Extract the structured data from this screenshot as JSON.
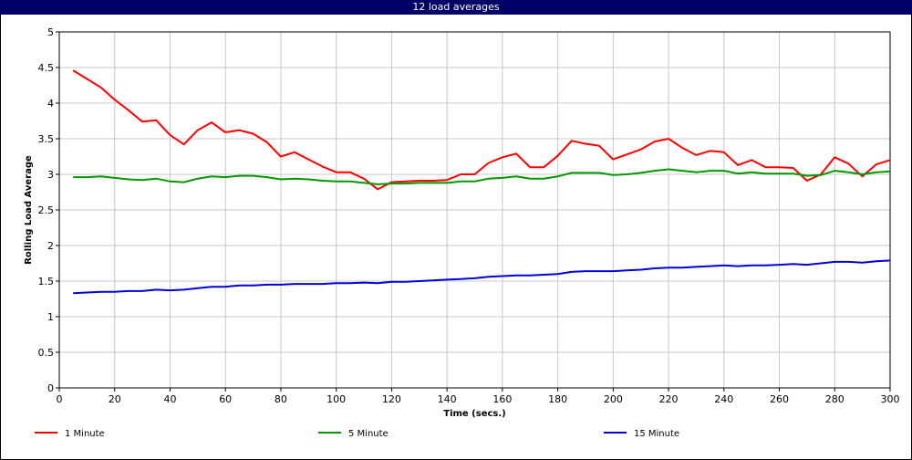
{
  "window": {
    "title": "12 load averages"
  },
  "colors": {
    "title_bar": "#000066",
    "grid": "#c8c8c8"
  },
  "chart_data": {
    "type": "line",
    "title": "12 load averages",
    "xlabel": "Time (secs.)",
    "ylabel": "Rolling Load Average",
    "xlim": [
      0,
      300
    ],
    "ylim": [
      0,
      5
    ],
    "x_ticks": [
      "0",
      "20",
      "40",
      "60",
      "80",
      "100",
      "120",
      "140",
      "160",
      "180",
      "200",
      "220",
      "240",
      "260",
      "280",
      "300"
    ],
    "y_ticks": [
      "0",
      "0.5",
      "1",
      "1.5",
      "2",
      "2.5",
      "3",
      "3.5",
      "4",
      "4.5",
      "5"
    ],
    "grid": true,
    "legend_position": "bottom",
    "x": [
      5,
      10,
      15,
      20,
      25,
      30,
      35,
      40,
      45,
      50,
      55,
      60,
      65,
      70,
      75,
      80,
      85,
      90,
      95,
      100,
      105,
      110,
      115,
      120,
      125,
      130,
      135,
      140,
      145,
      150,
      155,
      160,
      165,
      170,
      175,
      180,
      185,
      190,
      195,
      200,
      205,
      210,
      215,
      220,
      225,
      230,
      235,
      240,
      245,
      250,
      255,
      260,
      265,
      270,
      275,
      280,
      285,
      290,
      295,
      300
    ],
    "series": [
      {
        "name": "1 Minute",
        "color": "#ff0000",
        "values": [
          4.46,
          4.34,
          4.22,
          4.05,
          3.9,
          3.74,
          3.76,
          3.55,
          3.42,
          3.62,
          3.73,
          3.59,
          3.62,
          3.57,
          3.45,
          3.25,
          3.31,
          3.21,
          3.11,
          3.03,
          3.03,
          2.94,
          2.79,
          2.89,
          2.9,
          2.91,
          2.91,
          2.92,
          3.0,
          3.0,
          3.16,
          3.24,
          3.29,
          3.1,
          3.1,
          3.26,
          3.47,
          3.43,
          3.4,
          3.21,
          3.28,
          3.35,
          3.46,
          3.5,
          3.37,
          3.27,
          3.33,
          3.31,
          3.13,
          3.2,
          3.1,
          3.1,
          3.09,
          2.91,
          3.0,
          3.24,
          3.15,
          2.97,
          3.14,
          3.2
        ]
      },
      {
        "name": "5 Minute",
        "color": "#009900",
        "values": [
          2.96,
          2.96,
          2.97,
          2.95,
          2.93,
          2.92,
          2.94,
          2.9,
          2.89,
          2.94,
          2.97,
          2.96,
          2.98,
          2.98,
          2.96,
          2.93,
          2.94,
          2.93,
          2.91,
          2.9,
          2.9,
          2.88,
          2.86,
          2.87,
          2.87,
          2.88,
          2.88,
          2.88,
          2.9,
          2.9,
          2.94,
          2.95,
          2.97,
          2.94,
          2.94,
          2.97,
          3.02,
          3.02,
          3.02,
          2.99,
          3.0,
          3.02,
          3.05,
          3.07,
          3.05,
          3.03,
          3.05,
          3.05,
          3.01,
          3.03,
          3.01,
          3.01,
          3.01,
          2.98,
          2.99,
          3.05,
          3.03,
          3.0,
          3.03,
          3.04
        ]
      },
      {
        "name": "15 Minute",
        "color": "#0000dd",
        "values": [
          1.33,
          1.34,
          1.35,
          1.35,
          1.36,
          1.36,
          1.38,
          1.37,
          1.38,
          1.4,
          1.42,
          1.42,
          1.44,
          1.44,
          1.45,
          1.45,
          1.46,
          1.46,
          1.46,
          1.47,
          1.47,
          1.48,
          1.47,
          1.49,
          1.49,
          1.5,
          1.51,
          1.52,
          1.53,
          1.54,
          1.56,
          1.57,
          1.58,
          1.58,
          1.59,
          1.6,
          1.63,
          1.64,
          1.64,
          1.64,
          1.65,
          1.66,
          1.68,
          1.69,
          1.69,
          1.7,
          1.71,
          1.72,
          1.71,
          1.72,
          1.72,
          1.73,
          1.74,
          1.73,
          1.75,
          1.77,
          1.77,
          1.76,
          1.78,
          1.79
        ]
      }
    ]
  }
}
